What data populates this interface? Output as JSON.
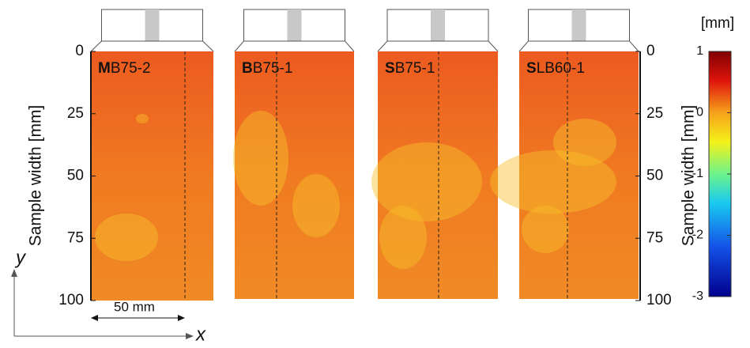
{
  "chart_data": {
    "type": "heatmap",
    "ylabel": "Sample width [mm]",
    "ylim": [
      0,
      100
    ],
    "yticks": [
      0,
      25,
      50,
      75,
      100
    ],
    "panels": [
      {
        "bold": "M",
        "label": "B75-2"
      },
      {
        "bold": "B",
        "label": "B75-1"
      },
      {
        "bold": "S",
        "label": "B75-1"
      },
      {
        "bold": "S",
        "label": "LB60-1"
      }
    ],
    "colorbar": {
      "label": "[mm]",
      "lim": [
        -3,
        1
      ],
      "ticks": [
        1,
        0,
        -1,
        -2,
        -3
      ]
    },
    "scale_label": "50 mm",
    "x_axis_label": "x",
    "y_axis_label": "y"
  }
}
